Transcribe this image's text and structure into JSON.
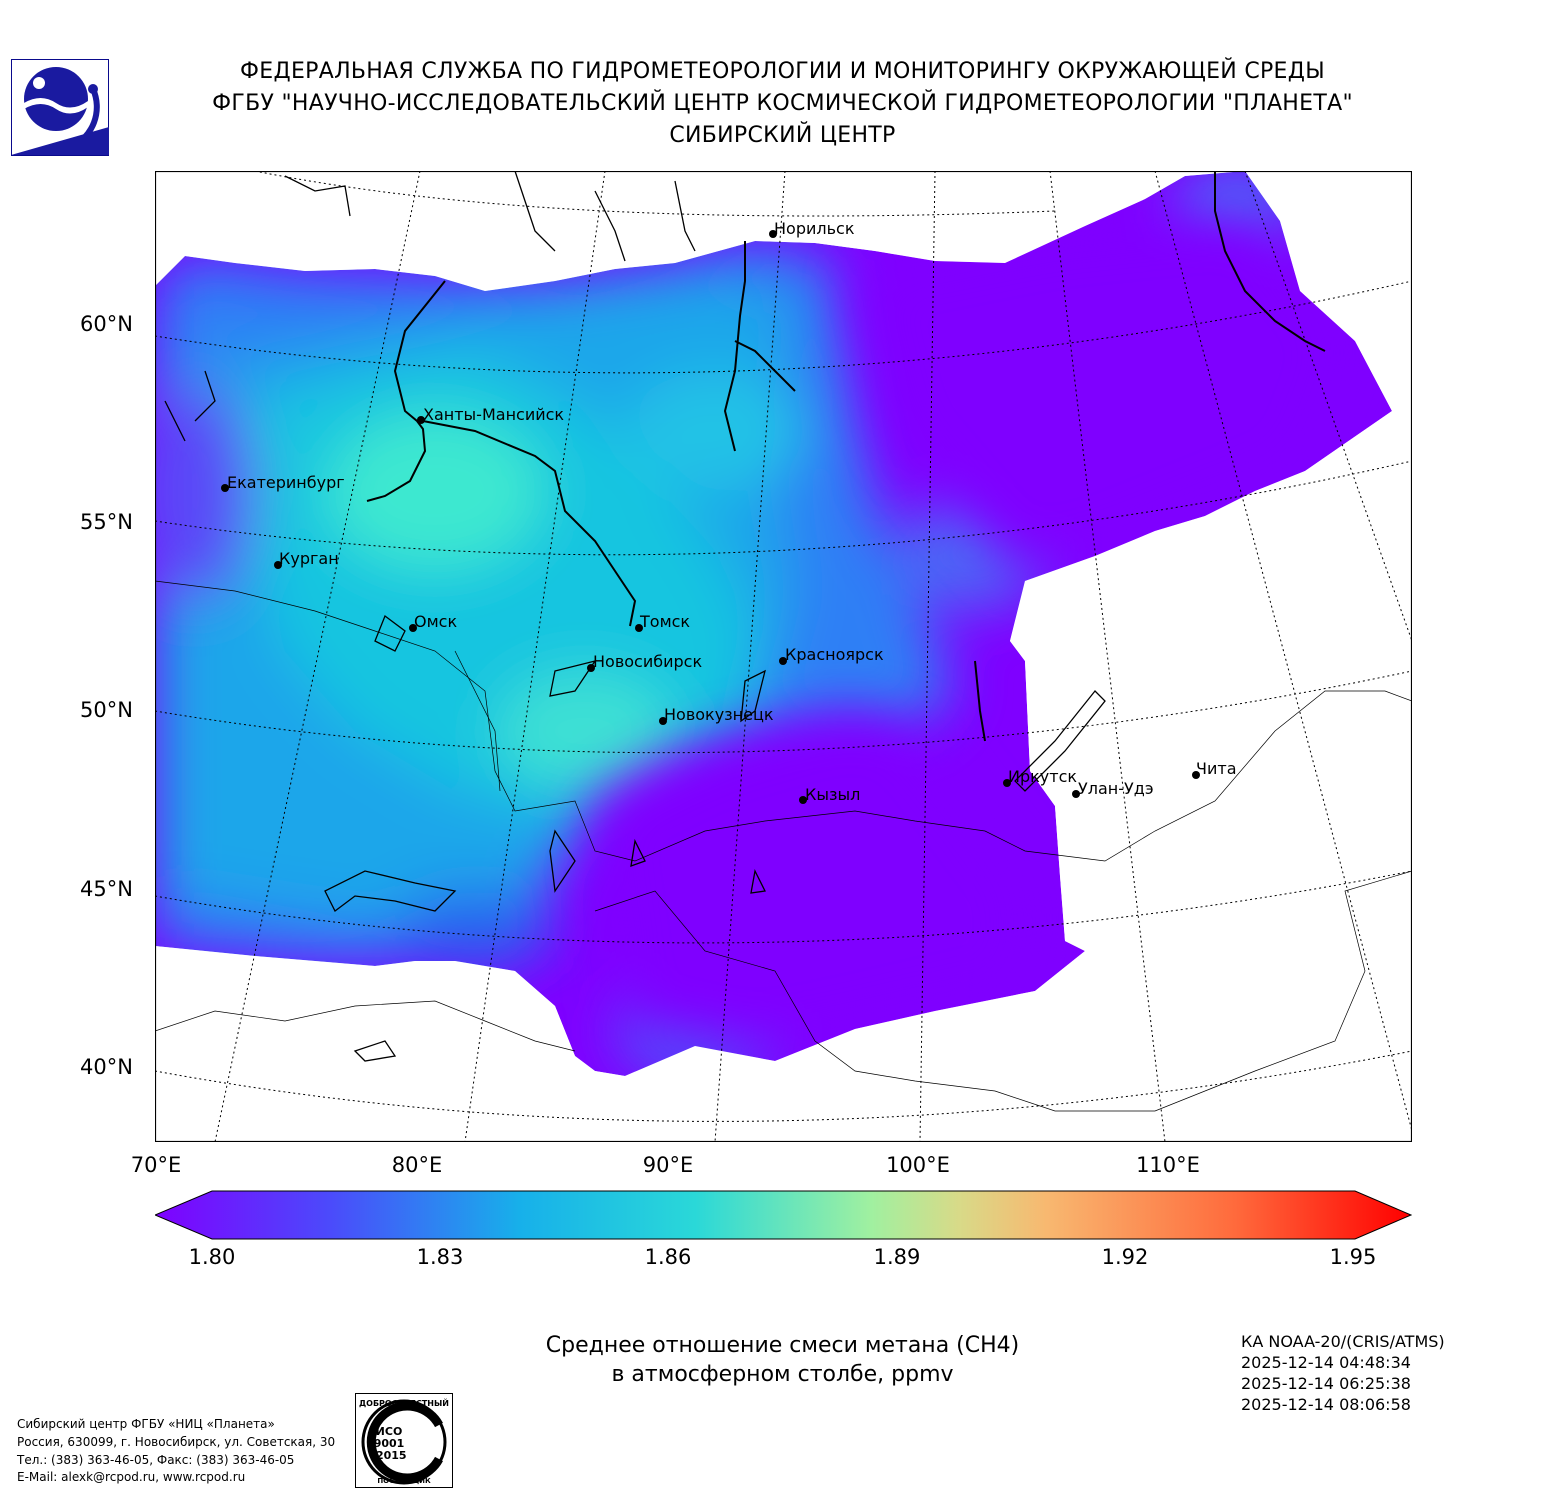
{
  "header": {
    "line1": "ФЕДЕРАЛЬНАЯ СЛУЖБА ПО ГИДРОМЕТЕОРОЛОГИИ И МОНИТОРИНГУ ОКРУЖАЮЩЕЙ СРЕДЫ",
    "line2": "ФГБУ \"НАУЧНО-ИССЛЕДОВАТЕЛЬСКИЙ ЦЕНТР КОСМИЧЕСКОЙ ГИДРОМЕТЕОРОЛОГИИ \"ПЛАНЕТА\"",
    "line3": "СИБИРСКИЙ ЦЕНТР"
  },
  "map": {
    "lat_labels": [
      "60°N",
      "55°N",
      "50°N",
      "45°N",
      "40°N"
    ],
    "lon_labels": [
      "70°E",
      "80°E",
      "90°E",
      "100°E",
      "110°E"
    ],
    "cities": [
      {
        "name": "Норильск"
      },
      {
        "name": "Ханты-Мансийск"
      },
      {
        "name": "Екатеринбург"
      },
      {
        "name": "Курган"
      },
      {
        "name": "Омск"
      },
      {
        "name": "Томск"
      },
      {
        "name": "Новосибирск"
      },
      {
        "name": "Красноярск"
      },
      {
        "name": "Новокузнецк"
      },
      {
        "name": "Иркутск"
      },
      {
        "name": "Кызыл"
      },
      {
        "name": "Улан-Удэ"
      },
      {
        "name": "Чита"
      }
    ]
  },
  "colorbar": {
    "ticks": [
      "1.80",
      "1.83",
      "1.86",
      "1.89",
      "1.92",
      "1.95"
    ],
    "colors": [
      "#7f00ff",
      "#2c7ef7",
      "#16c8e2",
      "#4cf2ce",
      "#a2f5a0",
      "#f0c880",
      "#ff7a40",
      "#ff0000"
    ]
  },
  "caption": {
    "line1": "Среднее отношение смеси метана (CH4)",
    "line2": "в атмосферном столбе, ppmv"
  },
  "satellite": {
    "name": "КА NOAA-20/(CRIS/ATMS)",
    "times": [
      "2025-12-14 04:48:34",
      "2025-12-14 06:25:38",
      "2025-12-14 08:06:58"
    ]
  },
  "footer": {
    "line1": "Сибирский центр ФГБУ «НИЦ «Планета»",
    "line2": "Россия, 630099, г. Новосибирск, ул. Советская, 30",
    "line3": "Тел.: (383) 363-46-05, Факс: (383) 363-46-05",
    "line4": "E-Mail: alexk@rcpod.ru, www.rcpod.ru"
  },
  "cert_badge": {
    "top_text": "ДОБРОСОВЕСТНЫЙ",
    "center_text_1": "ИСО",
    "center_text_2": "9001",
    "center_text_3": "-2015",
    "bottom_text": "ПОСТАВЩИК"
  }
}
